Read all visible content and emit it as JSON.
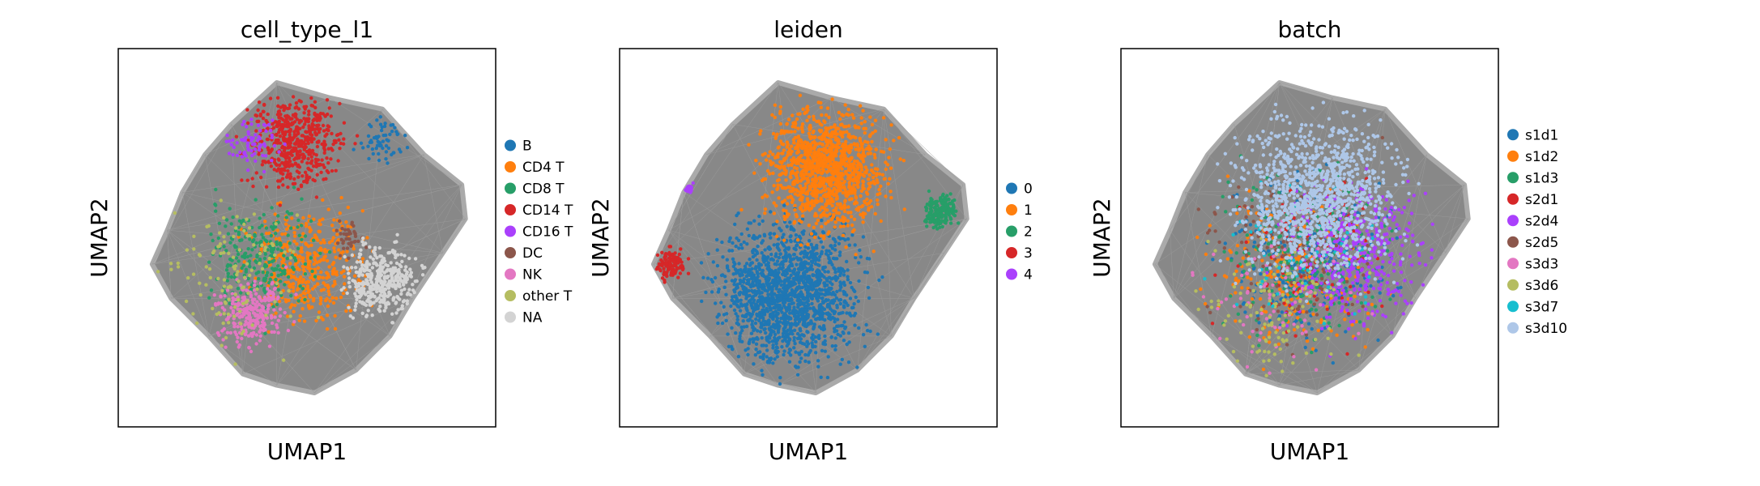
{
  "chart_data": [
    {
      "type": "scatter",
      "title": "cell_type_l1",
      "xlabel": "UMAP1",
      "ylabel": "UMAP2",
      "grid": false,
      "legend_placement": "right",
      "legend": [
        {
          "label": "B",
          "color": "#1f77b4"
        },
        {
          "label": "CD4 T",
          "color": "#ff7f0e"
        },
        {
          "label": "CD8 T",
          "color": "#279e68"
        },
        {
          "label": "CD14 T",
          "color": "#d62728"
        },
        {
          "label": "CD16 T",
          "color": "#aa40fc"
        },
        {
          "label": "DC",
          "color": "#8c564b"
        },
        {
          "label": "NK",
          "color": "#e377c2"
        },
        {
          "label": "other T",
          "color": "#b5bd61"
        },
        {
          "label": "NA",
          "color": "#d3d3d3"
        }
      ]
    },
    {
      "type": "scatter",
      "title": "leiden",
      "xlabel": "UMAP1",
      "ylabel": "UMAP2",
      "grid": false,
      "legend_placement": "right",
      "legend": [
        {
          "label": "0",
          "color": "#1f77b4"
        },
        {
          "label": "1",
          "color": "#ff7f0e"
        },
        {
          "label": "2",
          "color": "#279e68"
        },
        {
          "label": "3",
          "color": "#d62728"
        },
        {
          "label": "4",
          "color": "#aa40fc"
        }
      ]
    },
    {
      "type": "scatter",
      "title": "batch",
      "xlabel": "UMAP1",
      "ylabel": "UMAP2",
      "grid": false,
      "legend_placement": "right",
      "legend": [
        {
          "label": "s1d1",
          "color": "#1f77b4"
        },
        {
          "label": "s1d2",
          "color": "#ff7f0e"
        },
        {
          "label": "s1d3",
          "color": "#279e68"
        },
        {
          "label": "s2d1",
          "color": "#d62728"
        },
        {
          "label": "s2d4",
          "color": "#aa40fc"
        },
        {
          "label": "s2d5",
          "color": "#8c564b"
        },
        {
          "label": "s3d3",
          "color": "#e377c2"
        },
        {
          "label": "s3d6",
          "color": "#b5bd61"
        },
        {
          "label": "s3d7",
          "color": "#17becf"
        },
        {
          "label": "s3d10",
          "color": "#aec7e8"
        }
      ]
    }
  ]
}
